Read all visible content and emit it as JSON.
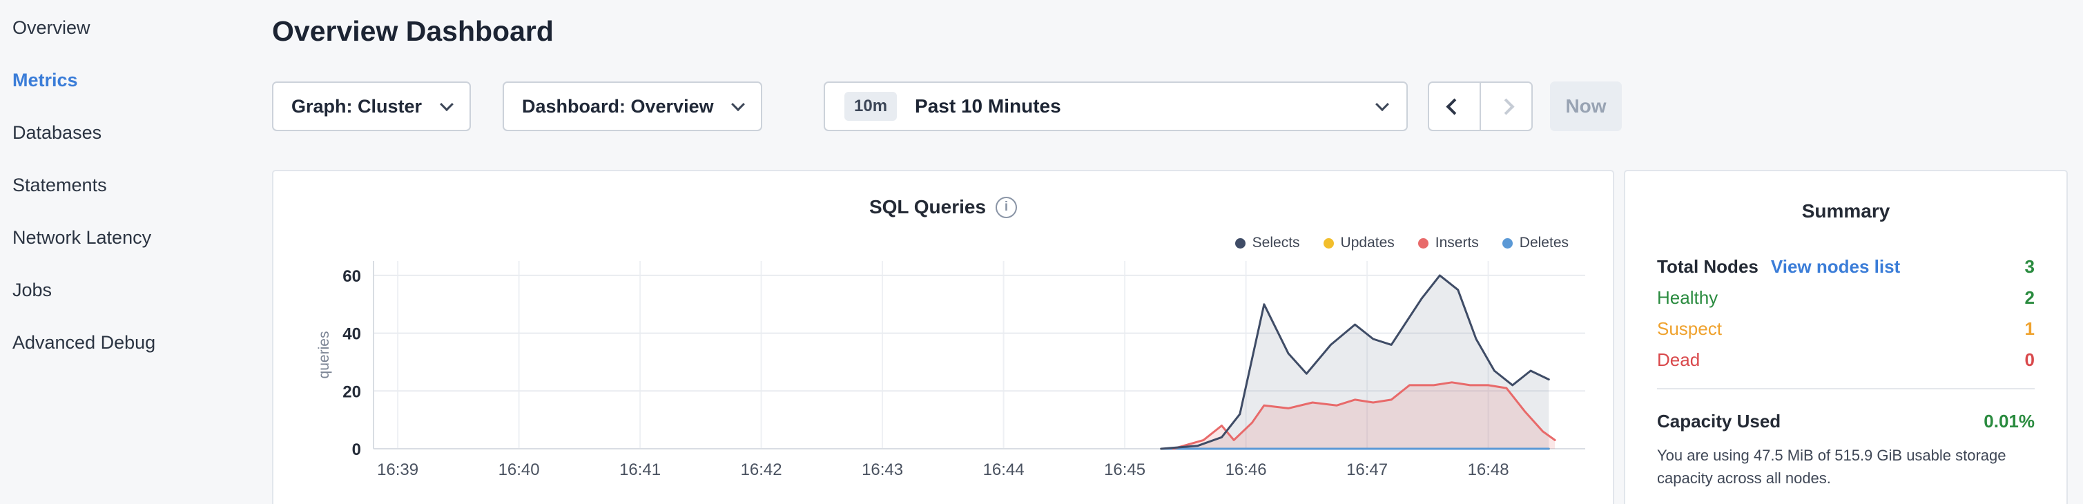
{
  "sidebar": {
    "items": [
      {
        "label": "Overview",
        "active": false
      },
      {
        "label": "Metrics",
        "active": true
      },
      {
        "label": "Databases",
        "active": false
      },
      {
        "label": "Statements",
        "active": false
      },
      {
        "label": "Network Latency",
        "active": false
      },
      {
        "label": "Jobs",
        "active": false
      },
      {
        "label": "Advanced Debug",
        "active": false
      }
    ]
  },
  "header": {
    "title": "Overview Dashboard"
  },
  "controls": {
    "graph_dropdown_label": "Graph: Cluster",
    "dashboard_dropdown_label": "Dashboard: Overview",
    "time_window_badge": "10m",
    "time_window_label": "Past 10 Minutes",
    "now_button_label": "Now"
  },
  "icons": {
    "info": "i",
    "chevron_down": "css-chevron-down",
    "chevron_left": "css-chevron-left",
    "chevron_right": "css-chevron-right"
  },
  "chart_data": {
    "type": "line",
    "title": "SQL Queries",
    "ylabel": "queries",
    "xlabel": "",
    "grid": true,
    "legend_position": "top-right",
    "xlim": [
      -0.2,
      9.8
    ],
    "ylim": [
      0,
      65
    ],
    "y_ticks": [
      0,
      20,
      40,
      60
    ],
    "x_ticks": [
      {
        "x": 0,
        "label": "16:39"
      },
      {
        "x": 1,
        "label": "16:40"
      },
      {
        "x": 2,
        "label": "16:41"
      },
      {
        "x": 3,
        "label": "16:42"
      },
      {
        "x": 4,
        "label": "16:43"
      },
      {
        "x": 5,
        "label": "16:44"
      },
      {
        "x": 6,
        "label": "16:45"
      },
      {
        "x": 7,
        "label": "16:46"
      },
      {
        "x": 8,
        "label": "16:47"
      },
      {
        "x": 9,
        "label": "16:48"
      }
    ],
    "series": [
      {
        "name": "Selects",
        "color": "#3f4c66",
        "fill": "rgba(116,128,148,0.16)",
        "x": [
          6.3,
          6.6,
          6.8,
          6.95,
          7.15,
          7.35,
          7.5,
          7.7,
          7.9,
          8.05,
          8.2,
          8.45,
          8.6,
          8.75,
          8.9,
          9.05,
          9.2,
          9.35,
          9.5
        ],
        "values": [
          0,
          1,
          4,
          12,
          50,
          33,
          26,
          36,
          43,
          38,
          36,
          52,
          60,
          55,
          38,
          27,
          22,
          27,
          24
        ]
      },
      {
        "name": "Updates",
        "color": "#f2be2c",
        "fill": "none",
        "x": [
          6.3,
          9.5
        ],
        "values": [
          0,
          0
        ]
      },
      {
        "name": "Inserts",
        "color": "#e86a6a",
        "fill": "rgba(232,106,106,0.16)",
        "x": [
          6.4,
          6.65,
          6.8,
          6.9,
          7.05,
          7.15,
          7.35,
          7.55,
          7.75,
          7.9,
          8.05,
          8.2,
          8.35,
          8.55,
          8.7,
          8.85,
          9.0,
          9.15,
          9.3,
          9.45,
          9.55
        ],
        "values": [
          0,
          3,
          8,
          3,
          9,
          15,
          14,
          16,
          15,
          17,
          16,
          17,
          22,
          22,
          23,
          22,
          22,
          21,
          13,
          6,
          3
        ]
      },
      {
        "name": "Deletes",
        "color": "#5b99d6",
        "fill": "none",
        "x": [
          6.3,
          9.5
        ],
        "values": [
          0,
          0
        ]
      }
    ]
  },
  "summary": {
    "title": "Summary",
    "total_nodes_label": "Total Nodes",
    "view_nodes_link": "View nodes list",
    "total_nodes_value": "3",
    "total_nodes_value_color": "#2a8b3f",
    "node_rows": [
      {
        "label": "Healthy",
        "value": "2",
        "color": "#2a8b3f"
      },
      {
        "label": "Suspect",
        "value": "1",
        "color": "#efa22e"
      },
      {
        "label": "Dead",
        "value": "0",
        "color": "#d9494c"
      }
    ],
    "capacity_label": "Capacity Used",
    "capacity_value": "0.01%",
    "capacity_value_color": "#2a8b3f",
    "capacity_note": "You are using 47.5 MiB of 515.9 GiB usable storage capacity across all nodes."
  }
}
